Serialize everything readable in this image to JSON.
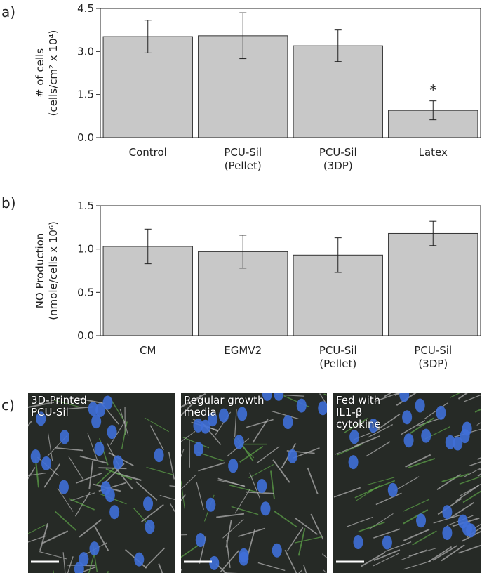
{
  "panel_labels": [
    "a)",
    "b)",
    "c)"
  ],
  "chart_data": [
    {
      "type": "bar",
      "y_label": "# of cells\n(cells/cm² x 10⁴)",
      "categories": [
        "Control",
        "PCU-Sil\n(Pellet)",
        "PCU-Sil\n(3DP)",
        "Latex"
      ],
      "values": [
        3.52,
        3.55,
        3.2,
        0.95
      ],
      "errors": [
        0.57,
        0.8,
        0.55,
        0.33
      ],
      "annotation": "*",
      "color": "#c8c8c8",
      "ylim": [
        0,
        4.5
      ],
      "yticks": [
        {
          "value": 0,
          "label": "0.0"
        },
        1.5,
        {
          "value": 3,
          "label": "3.0"
        },
        4.5
      ]
    },
    {
      "type": "bar",
      "y_label": "NO Production\n(nmole/cells x 10⁶)",
      "categories": [
        "CM",
        "EGMV2",
        "PCU-Sil\n(Pellet)",
        "PCU-Sil\n(3DP)"
      ],
      "values": [
        1.03,
        0.97,
        0.93,
        1.18
      ],
      "errors": [
        0.2,
        0.19,
        0.2,
        0.14
      ],
      "color": "#c8c8c8",
      "ylim": [
        0,
        1.5
      ],
      "yticks": [
        {
          "value": 0,
          "label": "0.0"
        },
        0.5,
        {
          "value": 1,
          "label": "1.0"
        },
        1.5
      ]
    }
  ],
  "images": [
    {
      "caption": "3D-Printed\nPCU-Sil"
    },
    {
      "caption": "Regular growth\nmedia"
    },
    {
      "caption": "Fed with\nIL1-β\ncytokine"
    }
  ]
}
